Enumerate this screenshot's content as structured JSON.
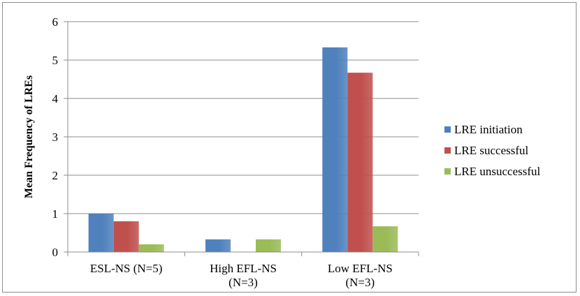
{
  "chart_data": {
    "type": "bar",
    "title": "",
    "xlabel": "",
    "ylabel": "Mean Frequency of LREs",
    "ylim": [
      0,
      6
    ],
    "yticks": [
      0,
      1,
      2,
      3,
      4,
      5,
      6
    ],
    "grid": true,
    "legend_position": "right",
    "categories": [
      [
        "ESL-NS (N=5)"
      ],
      [
        "High EFL-NS",
        "(N=3)"
      ],
      [
        "Low EFL-NS",
        "(N=3)"
      ]
    ],
    "series": [
      {
        "name": "LRE initiation",
        "color": "#4f81bd",
        "values": [
          1.0,
          0.33,
          5.33
        ]
      },
      {
        "name": "LRE successful",
        "color": "#c0504d",
        "values": [
          0.8,
          0,
          4.67
        ]
      },
      {
        "name": "LRE unsuccessful",
        "color": "#9bbb59",
        "values": [
          0.2,
          0.33,
          0.67
        ]
      }
    ]
  }
}
